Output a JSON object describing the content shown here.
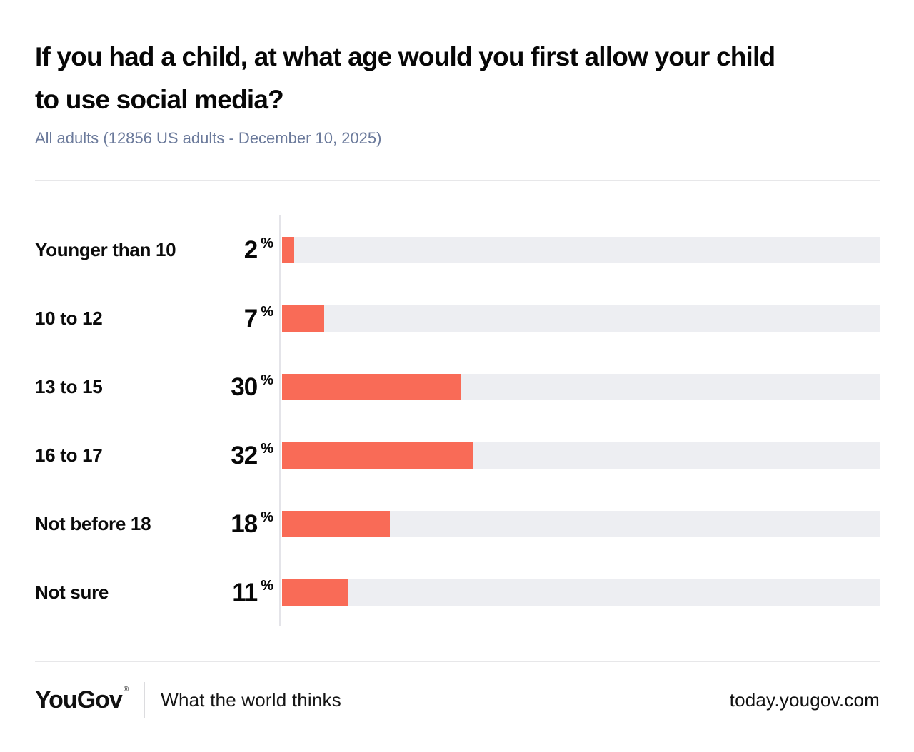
{
  "header": {
    "title": "If you had a child, at what age would you first allow your child\nto use social media?",
    "subtitle": "All adults (12856 US adults - December 10, 2025)"
  },
  "chart_data": {
    "type": "bar",
    "orientation": "horizontal",
    "title": "If you had a child, at what age would you first allow your child to use social media?",
    "categories": [
      "Younger than 10",
      "10 to 12",
      "13 to 15",
      "16 to 17",
      "Not before 18",
      "Not sure"
    ],
    "values": [
      2,
      7,
      30,
      32,
      18,
      11
    ],
    "unit": "%",
    "xlim": [
      0,
      100
    ],
    "grid": false,
    "legend": false,
    "bar_color": "#f96b57",
    "track_color": "#edeef2"
  },
  "footer": {
    "logo": "YouGov",
    "registered_mark": "®",
    "tagline": "What the world thinks",
    "url": "today.yougov.com"
  }
}
